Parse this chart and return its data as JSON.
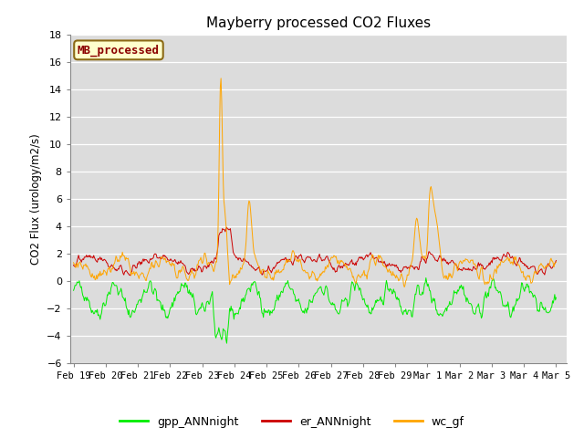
{
  "title": "Mayberry processed CO2 Fluxes",
  "ylabel": "CO2 Flux (urology/m2/s)",
  "ylim": [
    -6,
    18
  ],
  "yticks": [
    -6,
    -4,
    -2,
    0,
    2,
    4,
    6,
    8,
    10,
    12,
    14,
    16,
    18
  ],
  "xtick_labels": [
    "Feb 19",
    "Feb 20",
    "Feb 21",
    "Feb 22",
    "Feb 23",
    "Feb 24",
    "Feb 25",
    "Feb 26",
    "Feb 27",
    "Feb 28",
    "Feb 29",
    "Mar 1",
    "Mar 2",
    "Mar 3",
    "Mar 4",
    "Mar 5"
  ],
  "legend_label": "MB_processed",
  "legend_label_color": "#8B0000",
  "legend_label_bg": "#FFFFCC",
  "legend_label_border": "#8B6914",
  "series_colors": {
    "gpp_ANNnight": "#00EE00",
    "er_ANNnight": "#CC0000",
    "wc_gf": "#FFA500"
  },
  "background_color": "#DCDCDC",
  "figure_bg": "#FFFFFF",
  "n_points": 672,
  "seed": 42
}
